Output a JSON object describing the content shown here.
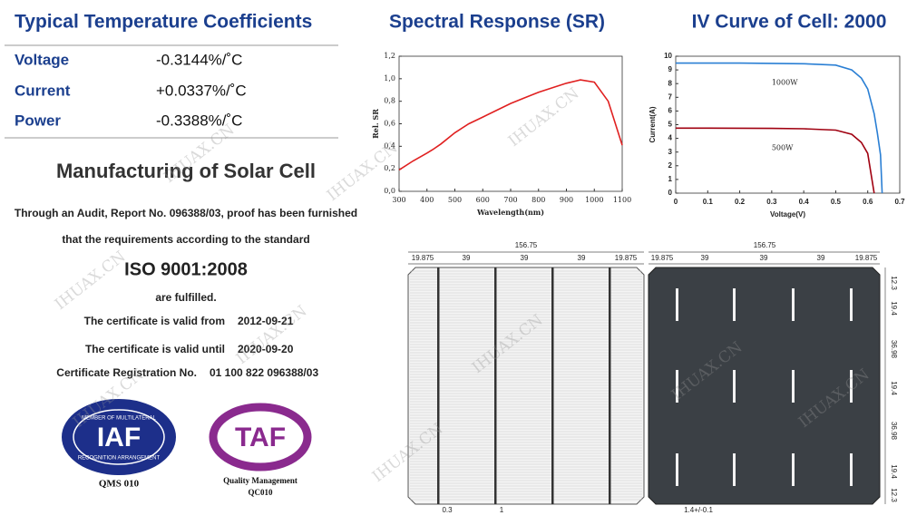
{
  "temperature_coefficients": {
    "title": "Typical Temperature Coefficients",
    "rows": [
      [
        "Voltage",
        "-0.3144%/˚C"
      ],
      [
        "Current",
        "+0.0337%/˚C"
      ],
      [
        "Power",
        "-0.3388%/˚C"
      ]
    ]
  },
  "certificate": {
    "title": "Manufacturing of Solar Cell",
    "line1": "Through an Audit, Report No. 096388/03, proof has been furnished",
    "line2": "that the requirements according to the standard",
    "standard": "ISO 9001:2008",
    "line3": "are fulfilled.",
    "valid_from": [
      "The certificate is valid from",
      "2012-09-21"
    ],
    "valid_until": [
      "The certificate is valid until",
      "2020-09-20"
    ],
    "registration": [
      "Certificate Registration No.",
      "01 100 822 096388/03"
    ]
  },
  "logos": {
    "iaf": {
      "ring_top": "MEMBER OF MULTILATERAL",
      "ring_bottom": "RECOGNITION ARRANGEMENT",
      "mark": "IAF",
      "caption": "QMS 010"
    },
    "taf": {
      "mark": "TAF",
      "caption": "Quality Management",
      "code": "QC010"
    }
  },
  "chart_data": [
    {
      "type": "line",
      "title": "Spectral Response (SR)",
      "x_label": "Wavelength(nm)",
      "y_label": "Rel. SR",
      "color": "#e02020",
      "x": [
        300,
        350,
        400,
        420,
        450,
        500,
        550,
        600,
        650,
        700,
        750,
        800,
        850,
        900,
        950,
        1000,
        1050,
        1100
      ],
      "values": [
        0.19,
        0.27,
        0.34,
        0.37,
        0.42,
        0.52,
        0.6,
        0.66,
        0.72,
        0.78,
        0.83,
        0.88,
        0.92,
        0.96,
        0.99,
        0.97,
        0.8,
        0.41
      ],
      "xlim": [
        300,
        1100
      ],
      "xticks": [
        300,
        400,
        500,
        600,
        700,
        800,
        900,
        1000,
        1100
      ],
      "ylim": [
        0,
        1.2
      ],
      "yticks": [
        {
          "value": 0,
          "label": "0,0"
        },
        {
          "value": 0.2,
          "label": "0,2"
        },
        {
          "value": 0.4,
          "label": "0,4"
        },
        {
          "value": 0.6,
          "label": "0,6"
        },
        {
          "value": 0.8,
          "label": "0,8"
        },
        {
          "value": 1,
          "label": "1,0"
        },
        {
          "value": 1.2,
          "label": "1,2"
        }
      ]
    },
    {
      "type": "line",
      "title": "IV Curve of Cell: 2000",
      "x_label": "Voltage(V)",
      "y_label": "Current(A)",
      "x": [
        0,
        0.1,
        0.2,
        0.3,
        0.4,
        0.5,
        0.55,
        0.58,
        0.6,
        0.62,
        0.63,
        0.64,
        0.645
      ],
      "series": [
        {
          "name": "1000W",
          "color": "#2a7fd4",
          "values": [
            9.5,
            9.5,
            9.5,
            9.48,
            9.45,
            9.35,
            9.0,
            8.4,
            7.6,
            5.8,
            4.4,
            2.8,
            0
          ]
        },
        {
          "name": "500W",
          "color": "#a00010",
          "values": [
            4.75,
            4.75,
            4.74,
            4.73,
            4.7,
            4.6,
            4.3,
            3.7,
            2.9,
            0,
            null,
            null,
            null
          ]
        }
      ],
      "xlim": [
        0,
        0.7
      ],
      "xticks": [
        0,
        0.1,
        0.2,
        0.3,
        0.4,
        0.5,
        0.6,
        0.7
      ],
      "ylim": [
        0,
        10
      ],
      "yticks": [
        0,
        1,
        2,
        3,
        4,
        5,
        6,
        7,
        8,
        9,
        10
      ]
    }
  ],
  "cell_drawings": {
    "front": {
      "width": "156.75",
      "top": [
        "19.875",
        "39",
        "39",
        "39",
        "19.875"
      ],
      "bottom": [
        "0.3",
        "1"
      ]
    },
    "back": {
      "width": "156.75",
      "top": [
        "19.875",
        "39",
        "39",
        "39",
        "19.875"
      ],
      "right": [
        "12.3",
        "19.4",
        "36.98",
        "19.4",
        "36.98",
        "19.4",
        "12.3"
      ],
      "bottom": "1.4+/-0.1"
    }
  },
  "watermark": "IHUAX.CN"
}
